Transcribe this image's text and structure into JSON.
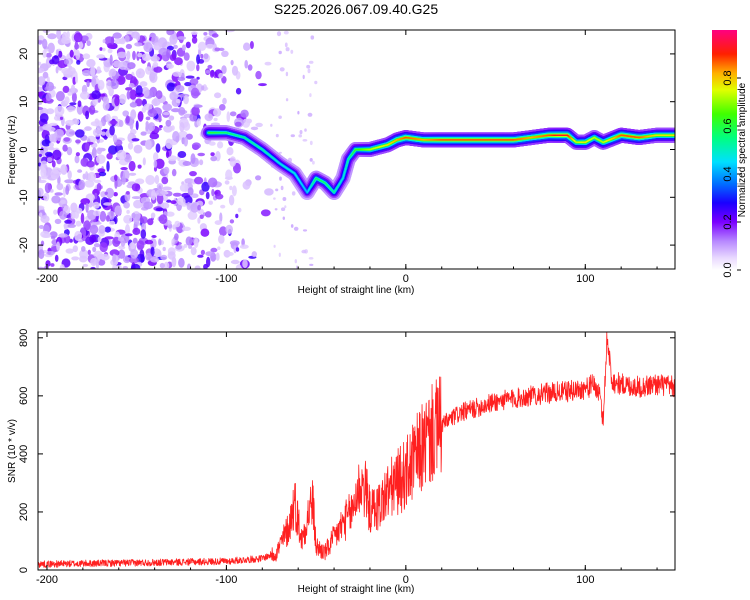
{
  "title": "S225.2026.067.09.40.G25",
  "chart_data": [
    {
      "type": "heatmap",
      "xlabel": "Height of straight line (km)",
      "ylabel": "Frequency (Hz)",
      "xlim": [
        -205,
        150
      ],
      "ylim": [
        -25,
        25
      ],
      "xticks": [
        -200,
        -100,
        0,
        100
      ],
      "yticks": [
        -20,
        -10,
        0,
        10,
        20
      ],
      "colorbar": {
        "label": "Normalized spectral amplitude",
        "range": [
          0,
          1
        ],
        "ticks": [
          "0.0",
          "0.2",
          "0.4",
          "0.6",
          "0.8"
        ]
      },
      "ridge": {
        "x": [
          -110,
          -100,
          -90,
          -80,
          -70,
          -62,
          -55,
          -50,
          -45,
          -40,
          -35,
          -32,
          -28,
          -20,
          -10,
          -5,
          0,
          10,
          20,
          40,
          60,
          70,
          80,
          85,
          90,
          95,
          100,
          105,
          110,
          120,
          130,
          140,
          150
        ],
        "freq": [
          3.5,
          3.5,
          2.5,
          0,
          -3,
          -5,
          -9,
          -6,
          -7,
          -9,
          -6,
          -2,
          0,
          0,
          1,
          2,
          2.5,
          2,
          2,
          2,
          2,
          2.5,
          3,
          3,
          3,
          1.5,
          1.5,
          2.5,
          1.5,
          3,
          2.5,
          3,
          3
        ],
        "amplitude": [
          0.6,
          0.55,
          0.5,
          0.5,
          0.45,
          0.45,
          0.4,
          0.55,
          0.55,
          0.5,
          0.45,
          0.5,
          0.6,
          0.7,
          0.75,
          0.8,
          0.85,
          0.8,
          0.85,
          0.85,
          0.85,
          0.8,
          0.85,
          0.9,
          0.9,
          0.7,
          0.75,
          0.7,
          0.7,
          0.85,
          0.85,
          0.75,
          0.75
        ]
      },
      "noise_region_x": [
        -205,
        -70
      ]
    },
    {
      "type": "line",
      "xlabel": "Height of straight line (km)",
      "ylabel": "SNR (10 * v/v)",
      "xlim": [
        -205,
        150
      ],
      "ylim": [
        0,
        820
      ],
      "xticks": [
        -200,
        -100,
        0,
        100
      ],
      "yticks": [
        0,
        200,
        400,
        600,
        800
      ],
      "series": [
        {
          "name": "SNR",
          "color": "#ff2020",
          "x": [
            -205,
            -150,
            -100,
            -80,
            -72,
            -65,
            -62,
            -58,
            -55,
            -52,
            -50,
            -45,
            -40,
            -35,
            -30,
            -28,
            -25,
            -22,
            -20,
            -15,
            -10,
            -5,
            0,
            5,
            10,
            15,
            20,
            30,
            40,
            50,
            60,
            70,
            80,
            90,
            100,
            105,
            108,
            110,
            112,
            115,
            120,
            130,
            140,
            150
          ],
          "y": [
            20,
            25,
            30,
            40,
            60,
            150,
            240,
            100,
            180,
            240,
            80,
            60,
            110,
            160,
            200,
            250,
            300,
            270,
            200,
            220,
            270,
            300,
            330,
            380,
            430,
            470,
            500,
            540,
            560,
            580,
            590,
            600,
            610,
            615,
            625,
            640,
            600,
            510,
            800,
            650,
            640,
            630,
            640,
            630
          ]
        }
      ]
    }
  ],
  "colors": {
    "line": "#ff2020",
    "frame": "#000000",
    "background": "#ffffff"
  }
}
